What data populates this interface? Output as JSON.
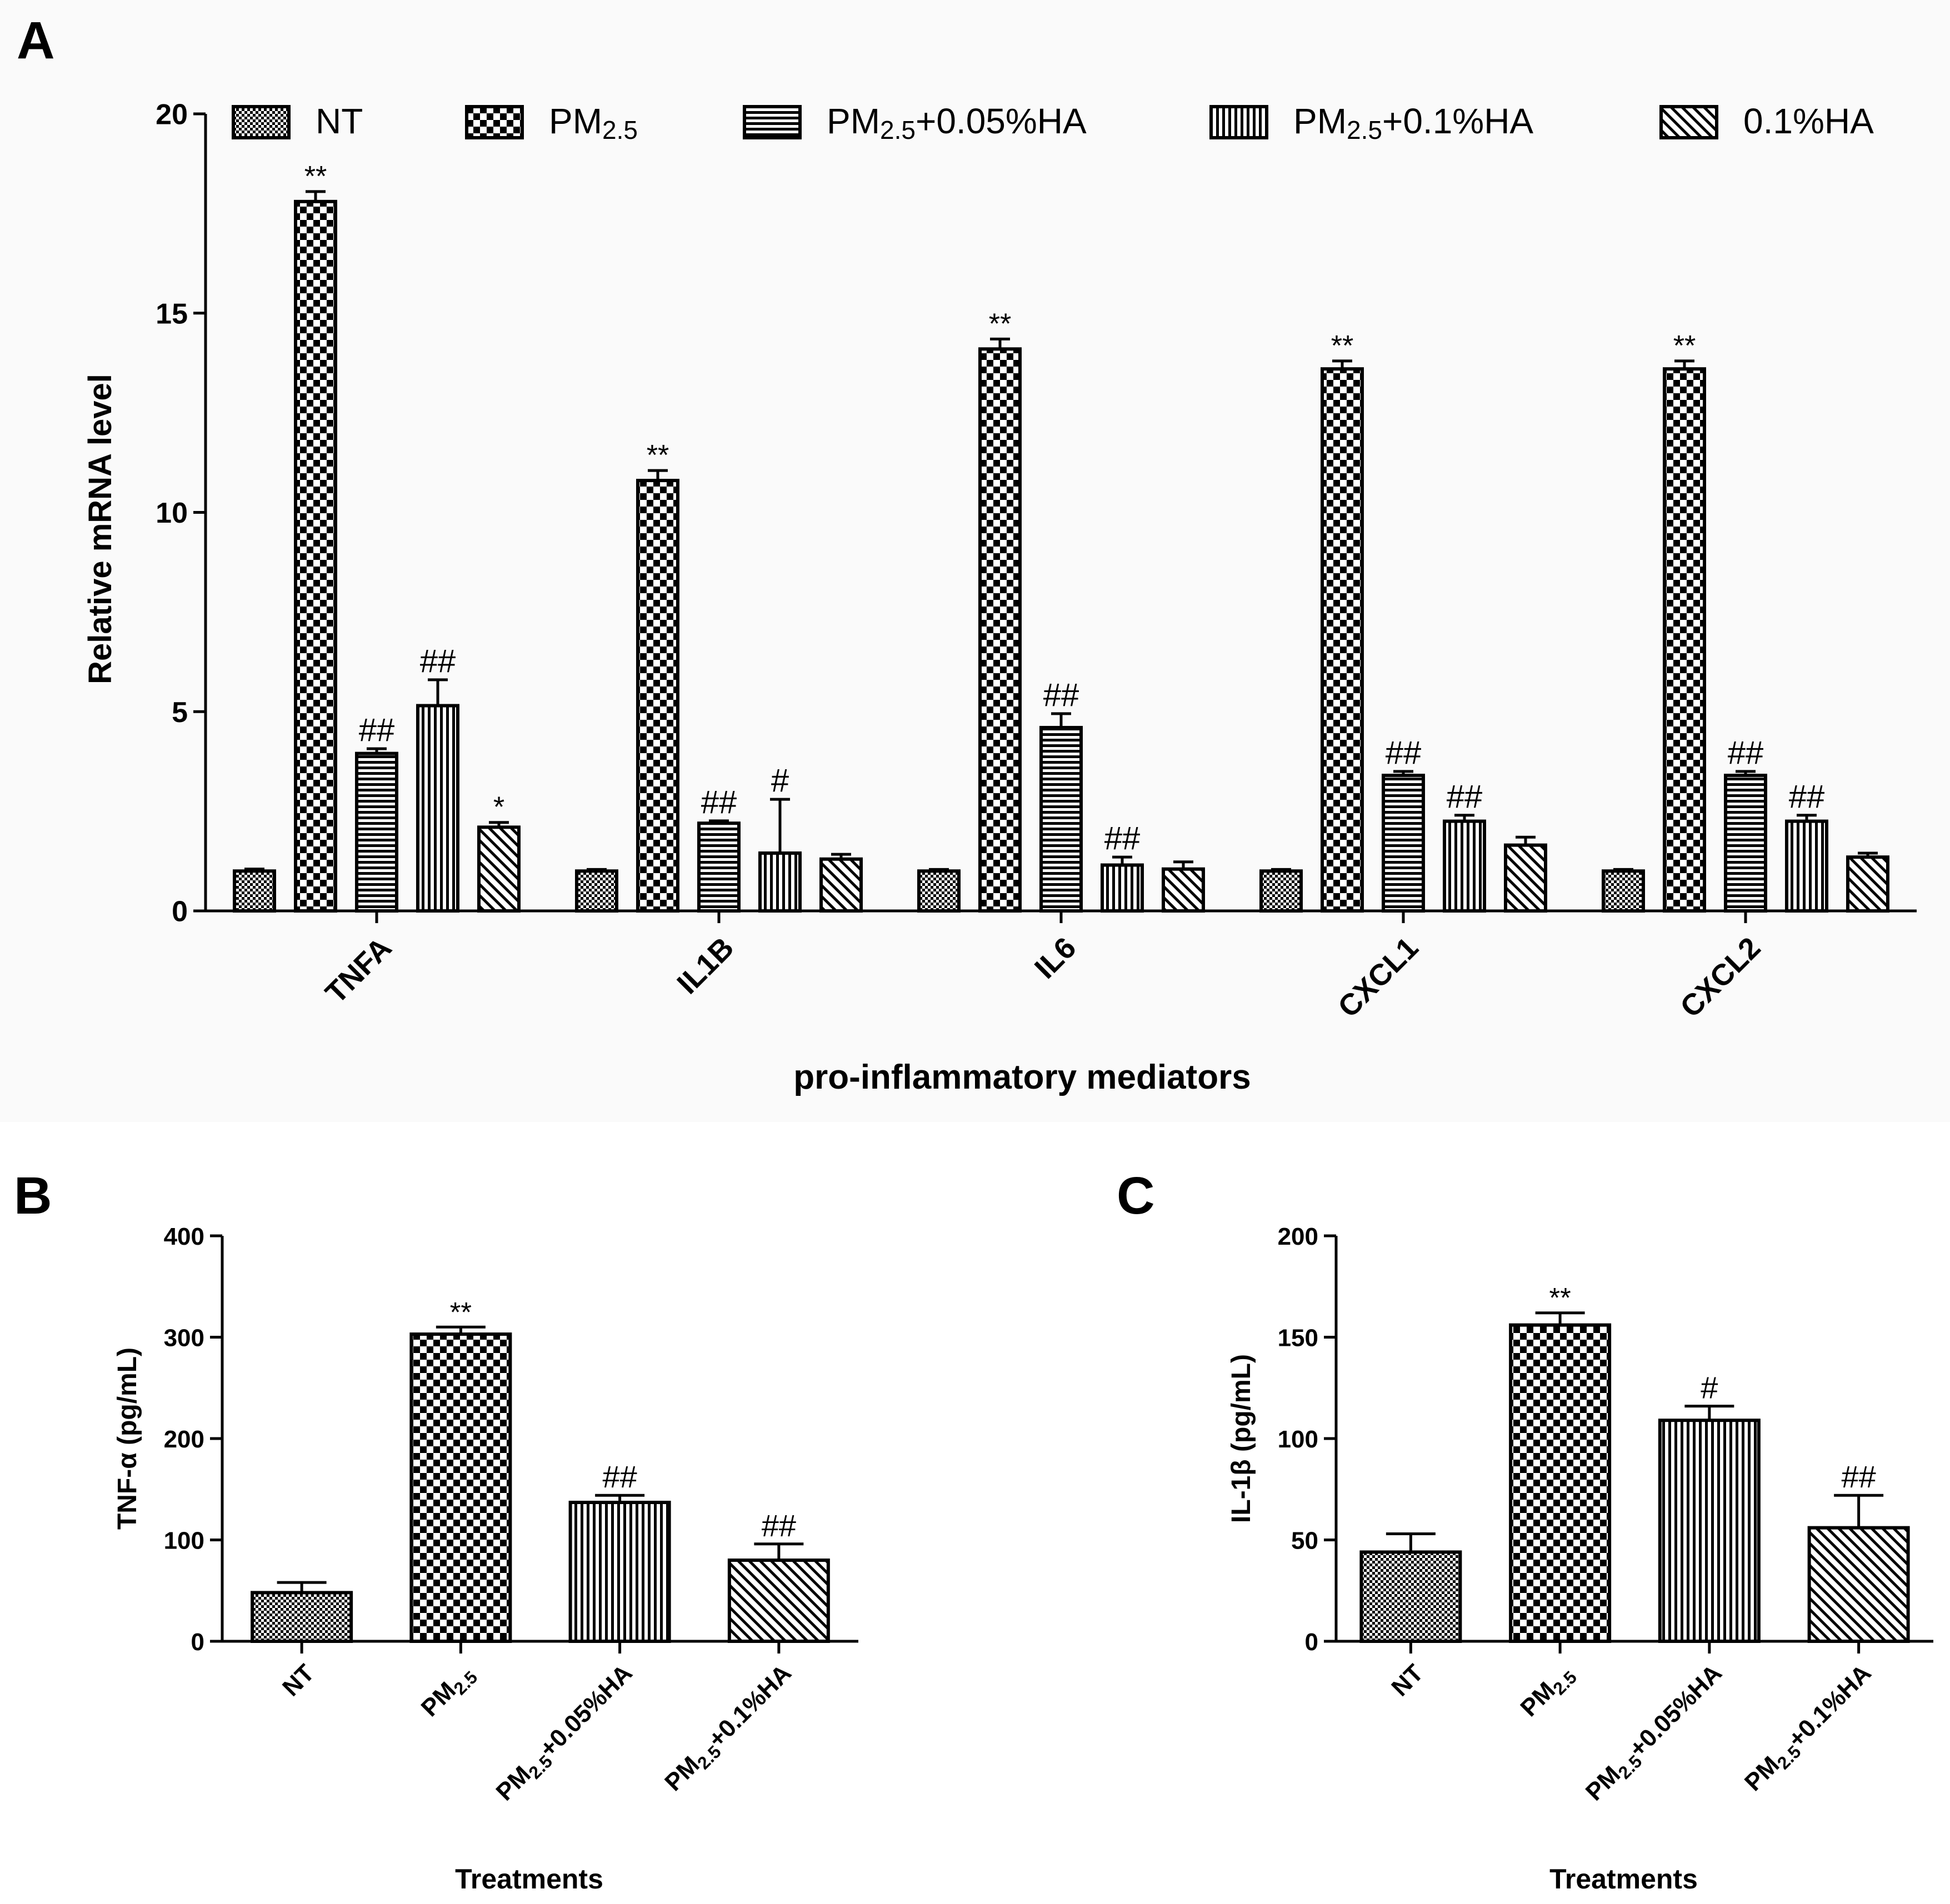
{
  "figure": {
    "panel_labels": [
      "A",
      "B",
      "C"
    ],
    "x_category_labels_b": [
      {
        "parts": [
          [
            "NT",
            ""
          ]
        ]
      },
      {
        "parts": [
          [
            "PM",
            ""
          ],
          [
            "2.5",
            "sub"
          ]
        ]
      },
      {
        "parts": [
          [
            "PM",
            ""
          ],
          [
            "2.5",
            "sub"
          ],
          [
            "+0.05%HA",
            ""
          ]
        ]
      },
      {
        "parts": [
          [
            "PM",
            ""
          ],
          [
            "2.5",
            "sub"
          ],
          [
            "+0.1%HA",
            ""
          ]
        ]
      }
    ]
  },
  "chart_data": [
    {
      "panel": "A",
      "type": "bar",
      "title": "",
      "xlabel": "pro-inflammatory mediators",
      "ylabel": "Relative mRNA level",
      "ylim": [
        0,
        20
      ],
      "yticks": [
        "0",
        "5",
        "10",
        "15",
        "20"
      ],
      "categories": [
        "TNFA",
        "IL1B",
        "IL6",
        "CXCL1",
        "CXCL2"
      ],
      "legend_position": "top",
      "legend": [
        {
          "pattern": "checker-small",
          "parts": [
            [
              "NT",
              ""
            ]
          ]
        },
        {
          "pattern": "checker-large",
          "parts": [
            [
              "PM",
              ""
            ],
            [
              "2.5",
              "sub"
            ]
          ]
        },
        {
          "pattern": "horizontal",
          "parts": [
            [
              "PM",
              ""
            ],
            [
              "2.5",
              "sub"
            ],
            [
              "+0.05%HA",
              ""
            ]
          ]
        },
        {
          "pattern": "vertical",
          "parts": [
            [
              "PM",
              ""
            ],
            [
              "2.5",
              "sub"
            ],
            [
              "+0.1%HA",
              ""
            ]
          ]
        },
        {
          "pattern": "diagonal",
          "parts": [
            [
              "0.1%HA",
              ""
            ]
          ]
        }
      ],
      "series": [
        {
          "name": "NT",
          "pattern": "checker-small",
          "values": [
            1.0,
            1.0,
            1.0,
            1.0,
            1.0
          ],
          "errors": [
            0.05,
            0.04,
            0.04,
            0.04,
            0.04
          ],
          "annotations": [
            "",
            "",
            "",
            "",
            ""
          ]
        },
        {
          "name": "PM2.5",
          "pattern": "checker-large",
          "values": [
            17.8,
            10.8,
            14.1,
            13.6,
            13.6
          ],
          "errors": [
            0.25,
            0.25,
            0.25,
            0.2,
            0.2
          ],
          "annotations": [
            "**",
            "**",
            "**",
            "**",
            "**"
          ]
        },
        {
          "name": "PM2.5+0.05%HA",
          "pattern": "horizontal",
          "values": [
            3.95,
            2.2,
            4.6,
            3.4,
            3.4
          ],
          "errors": [
            0.12,
            0.06,
            0.35,
            0.1,
            0.1
          ],
          "annotations": [
            "##",
            "##",
            "##",
            "##",
            "##"
          ]
        },
        {
          "name": "PM2.5+0.1%HA",
          "pattern": "vertical",
          "values": [
            5.15,
            1.45,
            1.15,
            2.25,
            2.25
          ],
          "errors": [
            0.65,
            1.35,
            0.2,
            0.15,
            0.15
          ],
          "annotations": [
            "##",
            "#",
            "##",
            "##",
            "##"
          ]
        },
        {
          "name": "0.1%HA",
          "pattern": "diagonal",
          "values": [
            2.1,
            1.3,
            1.05,
            1.65,
            1.35
          ],
          "errors": [
            0.12,
            0.12,
            0.18,
            0.2,
            0.1
          ],
          "annotations": [
            "*",
            "",
            "",
            "",
            ""
          ]
        }
      ]
    },
    {
      "panel": "B",
      "type": "bar",
      "title": "",
      "xlabel": "Treatments",
      "ylabel": "TNF-α (pg/mL)",
      "ylim": [
        0,
        400
      ],
      "yticks": [
        "0",
        "100",
        "200",
        "300",
        "400"
      ],
      "categories": [
        "NT",
        "PM2.5",
        "PM2.5+0.05%HA",
        "PM2.5+0.1%HA"
      ],
      "patterns": [
        "checker-small",
        "checker-large",
        "vertical",
        "diagonal"
      ],
      "values": [
        48,
        303,
        137,
        80
      ],
      "errors": [
        10,
        7,
        7,
        16
      ],
      "annotations": [
        "",
        "**",
        "##",
        "##"
      ]
    },
    {
      "panel": "C",
      "type": "bar",
      "title": "",
      "xlabel": "Treatments",
      "ylabel": "IL-1β (pg/mL)",
      "ylim": [
        0,
        200
      ],
      "yticks": [
        "0",
        "50",
        "100",
        "150",
        "200"
      ],
      "categories": [
        "NT",
        "PM2.5",
        "PM2.5+0.05%HA",
        "PM2.5+0.1%HA"
      ],
      "patterns": [
        "checker-small",
        "checker-large",
        "vertical",
        "diagonal"
      ],
      "values": [
        44,
        156,
        109,
        56
      ],
      "errors": [
        9,
        6,
        7,
        16
      ],
      "annotations": [
        "",
        "**",
        "#",
        "##"
      ]
    }
  ]
}
